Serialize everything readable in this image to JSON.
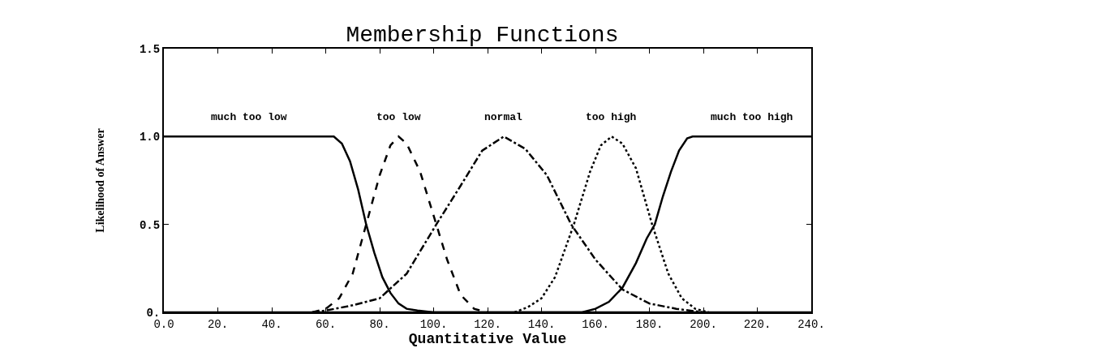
{
  "chart_data": {
    "type": "line",
    "title": "Membership Functions",
    "xlabel": "Quantitative Value",
    "ylabel": "Likelihood of Answer",
    "xlim": [
      0,
      240
    ],
    "xticks": [
      {
        "value": 0,
        "label": "0.0"
      },
      {
        "value": 20,
        "label": "20."
      },
      {
        "value": 40,
        "label": "40."
      },
      {
        "value": 60,
        "label": "60."
      },
      {
        "value": 80,
        "label": "80."
      },
      {
        "value": 100,
        "label": "100."
      },
      {
        "value": 120,
        "label": "120."
      },
      {
        "value": 140,
        "label": "140."
      },
      {
        "value": 160,
        "label": "160."
      },
      {
        "value": 180,
        "label": "180."
      },
      {
        "value": 200,
        "label": "200."
      },
      {
        "value": 220,
        "label": "220."
      },
      {
        "value": 240,
        "label": "240."
      }
    ],
    "ylim": [
      0,
      1.5
    ],
    "yticks": [
      {
        "value": 0,
        "label": "0."
      },
      {
        "value": 0.5,
        "label": "0.5"
      },
      {
        "value": 1,
        "label": "1.0"
      },
      1.5
    ],
    "grid": false,
    "legend": false,
    "series": [
      {
        "name": "much too low",
        "color": "#000000",
        "line_style": "solid",
        "x": [
          0,
          63,
          66,
          69,
          72,
          75,
          78,
          81,
          84,
          87,
          90,
          94,
          100,
          240
        ],
        "values": [
          1,
          1,
          0.96,
          0.86,
          0.7,
          0.5,
          0.34,
          0.2,
          0.11,
          0.05,
          0.02,
          0.01,
          0,
          0
        ]
      },
      {
        "name": "too low",
        "color": "#000000",
        "line_style": "dashed",
        "x": [
          55,
          60,
          65,
          70,
          75,
          80,
          84,
          87,
          90,
          95,
          101,
          105,
          110,
          115,
          120
        ],
        "values": [
          0,
          0.02,
          0.08,
          0.22,
          0.5,
          0.78,
          0.95,
          1,
          0.96,
          0.8,
          0.5,
          0.3,
          0.1,
          0.02,
          0
        ]
      },
      {
        "name": "normal",
        "color": "#000000",
        "line_style": "dashdot",
        "x": [
          55,
          60,
          70,
          80,
          90,
          101,
          110,
          118,
          126,
          134,
          142,
          151,
          160,
          170,
          180,
          190,
          200
        ],
        "values": [
          0,
          0.01,
          0.04,
          0.08,
          0.22,
          0.5,
          0.72,
          0.92,
          1,
          0.93,
          0.78,
          0.5,
          0.3,
          0.13,
          0.05,
          0.02,
          0
        ]
      },
      {
        "name": "too high",
        "color": "#000000",
        "line_style": "dotted",
        "x": [
          130,
          135,
          140,
          145,
          152,
          158,
          162,
          166,
          170,
          175,
          181,
          187,
          192,
          197,
          202
        ],
        "values": [
          0,
          0.03,
          0.08,
          0.2,
          0.5,
          0.8,
          0.95,
          1,
          0.96,
          0.82,
          0.5,
          0.22,
          0.08,
          0.02,
          0
        ]
      },
      {
        "name": "much too high",
        "color": "#000000",
        "line_style": "solid",
        "x": [
          0,
          155,
          160,
          165,
          170,
          175,
          179,
          182,
          185,
          188,
          191,
          194,
          196,
          240
        ],
        "values": [
          0,
          0,
          0.02,
          0.06,
          0.14,
          0.28,
          0.42,
          0.5,
          0.66,
          0.8,
          0.92,
          0.99,
          1,
          1
        ]
      }
    ]
  }
}
